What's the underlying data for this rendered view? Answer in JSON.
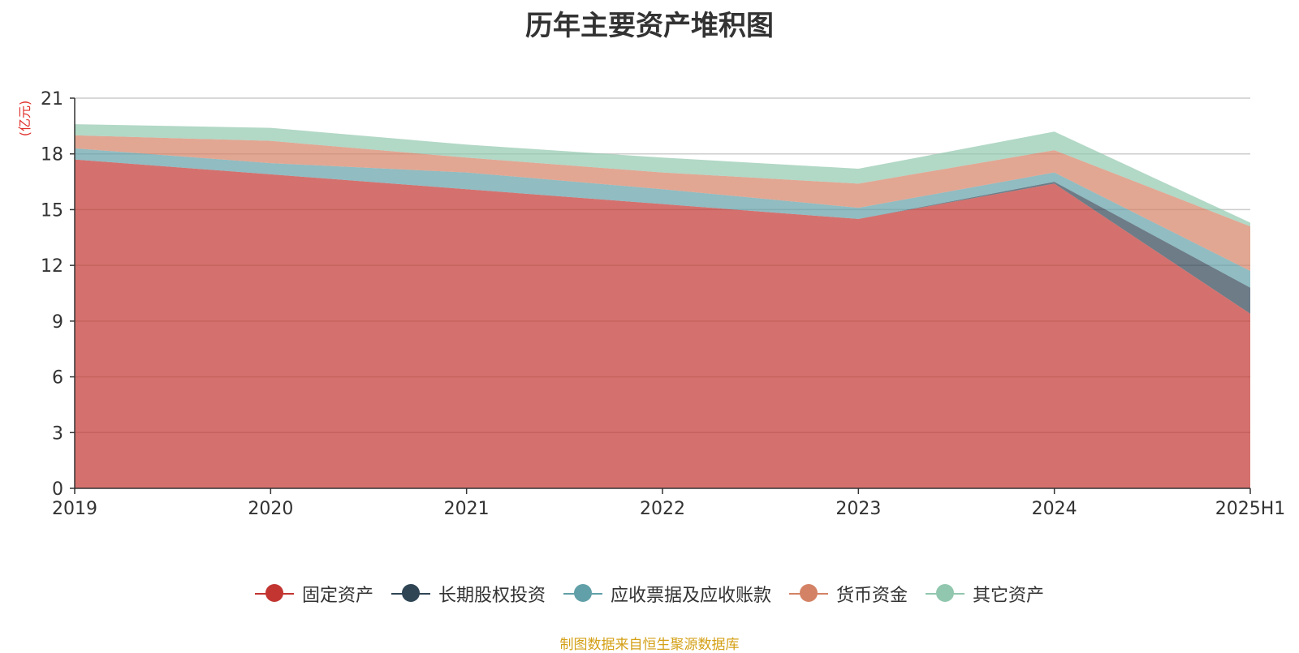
{
  "chart_data": {
    "type": "area",
    "stacked": true,
    "title": "历年主要资产堆积图",
    "ylabel": "(亿元)",
    "xlabel": "",
    "categories": [
      "2019",
      "2020",
      "2021",
      "2022",
      "2023",
      "2024",
      "2025H1"
    ],
    "ylim": [
      0,
      21
    ],
    "yticks": [
      0,
      3,
      6,
      9,
      12,
      15,
      18,
      21
    ],
    "grid": true,
    "legend_position": "bottom",
    "series": [
      {
        "name": "固定资产",
        "color": "#c23531",
        "values": [
          17.7,
          16.9,
          16.1,
          15.3,
          14.5,
          16.4,
          9.4
        ]
      },
      {
        "name": "长期股权投资",
        "color": "#2f4554",
        "values": [
          0,
          0,
          0,
          0,
          0,
          0.1,
          1.4
        ]
      },
      {
        "name": "应收票据及应收账款",
        "color": "#61a0a8",
        "values": [
          0.6,
          0.6,
          0.9,
          0.8,
          0.6,
          0.5,
          0.9
        ]
      },
      {
        "name": "货币资金",
        "color": "#d48265",
        "values": [
          0.7,
          1.2,
          0.8,
          0.9,
          1.3,
          1.2,
          2.4
        ]
      },
      {
        "name": "其它资产",
        "color": "#91c7ae",
        "values": [
          0.6,
          0.7,
          0.7,
          0.8,
          0.8,
          1.0,
          0.2
        ]
      }
    ]
  },
  "source_note": "制图数据来自恒生聚源数据库"
}
